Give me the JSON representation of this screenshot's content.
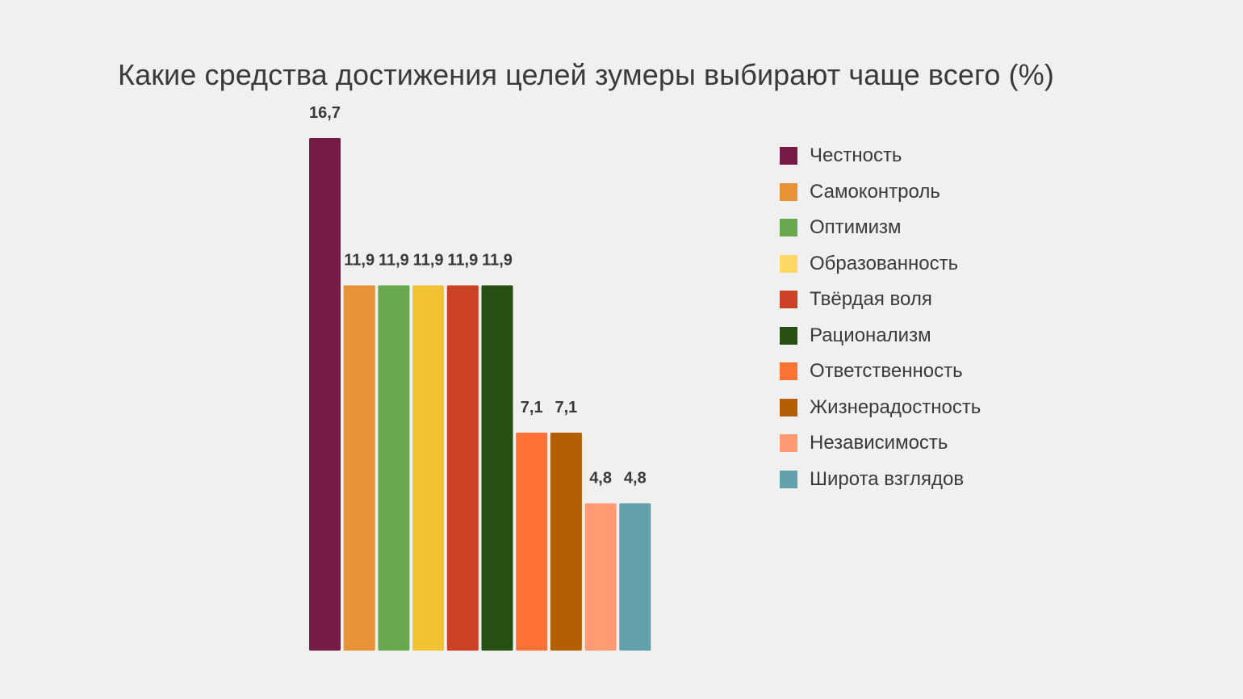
{
  "chart_data": {
    "type": "bar",
    "title": "Какие средства достижения целей зумеры выбирают чаще всего (%)",
    "xlabel": "",
    "ylabel": "",
    "ylim": [
      0,
      16.7
    ],
    "grid": false,
    "legend_position": "right",
    "categories": [
      "Честность",
      "Самоконтроль",
      "Оптимизм",
      "Образованность",
      "Твёрдая воля",
      "Рационализм",
      "Ответственность",
      "Жизнерадостность",
      "Независимость",
      "Широта взглядов"
    ],
    "values": [
      16.7,
      11.9,
      11.9,
      11.9,
      11.9,
      11.9,
      7.1,
      7.1,
      4.8,
      4.8
    ],
    "value_labels": [
      "16,7",
      "11,9",
      "11,9",
      "11,9",
      "11,9",
      "11,9",
      "7,1",
      "7,1",
      "4,8",
      "4,8"
    ],
    "colors": [
      "#751a45",
      "#e79238",
      "#6aa84f",
      "#f1c232",
      "#cc4125",
      "#274e13",
      "#ff7236",
      "#b45f06",
      "#ff9a72",
      "#62a0aa"
    ],
    "legend_colors": [
      "#751a45",
      "#e79238",
      "#6aa84f",
      "#ffd966",
      "#cc4125",
      "#274e13",
      "#ff7236",
      "#b45f06",
      "#ff9a72",
      "#62a0aa"
    ]
  }
}
